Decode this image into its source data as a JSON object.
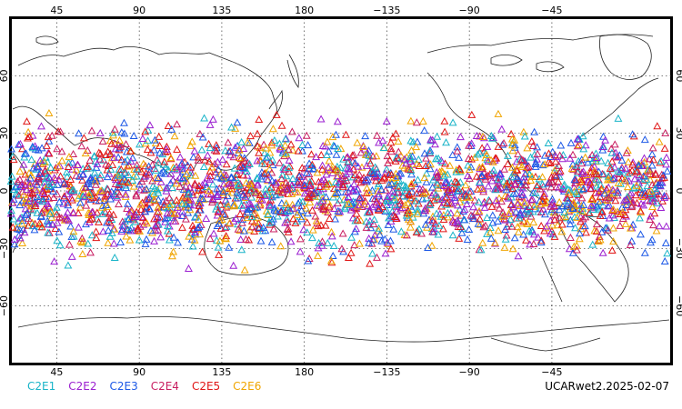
{
  "map": {
    "top_lon_labels": [
      "45",
      "90",
      "135",
      "180",
      "−135",
      "−90",
      "−45"
    ],
    "bottom_lon_labels": [
      "45",
      "90",
      "135",
      "180",
      "−135",
      "−90",
      "−45"
    ],
    "lat_labels": [
      "60",
      "30",
      "0",
      "−30",
      "−60"
    ],
    "lat_values": [
      60,
      30,
      0,
      -30,
      -60
    ],
    "lon_values": [
      45,
      90,
      135,
      180,
      225,
      270,
      315
    ],
    "gridline_style": "dotted",
    "band_lat_range": [
      -45,
      45
    ]
  },
  "legend": [
    {
      "label": "C2E1",
      "color": "#19b4c8"
    },
    {
      "label": "C2E2",
      "color": "#9b1fd0"
    },
    {
      "label": "C2E3",
      "color": "#1c58e6"
    },
    {
      "label": "C2E4",
      "color": "#c81e60"
    },
    {
      "label": "C2E5",
      "color": "#e01616"
    },
    {
      "label": "C2E6",
      "color": "#f0a500"
    }
  ],
  "stamp": "UCARwet2.2025-02-07"
}
